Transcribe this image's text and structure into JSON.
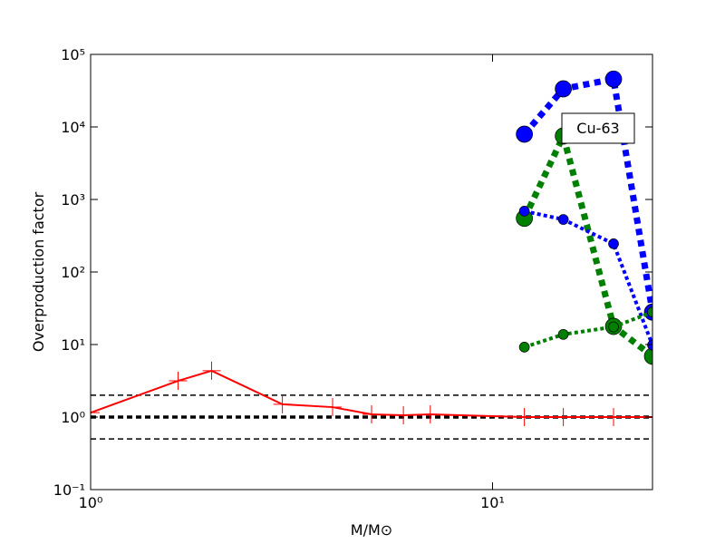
{
  "chart_data": {
    "type": "line",
    "xlabel": "M/M⊙",
    "ylabel": "Overproduction factor",
    "annotation": "Cu-63",
    "xscale": "log",
    "yscale": "log",
    "xlim": [
      1,
      25
    ],
    "ylim": [
      0.1,
      100000
    ],
    "xticks": [
      {
        "value": 1,
        "label": "10⁰"
      },
      {
        "value": 10,
        "label": "10¹"
      }
    ],
    "yticks": [
      {
        "value": 0.1,
        "label": "10⁻¹"
      },
      {
        "value": 1,
        "label": "10⁰"
      },
      {
        "value": 10,
        "label": "10¹"
      },
      {
        "value": 100,
        "label": "10²"
      },
      {
        "value": 1000,
        "label": "10³"
      },
      {
        "value": 10000,
        "label": "10⁴"
      },
      {
        "value": 100000,
        "label": "10⁵"
      }
    ],
    "hlines": [
      {
        "value": 2,
        "color": "#000000",
        "linewidth": 1.5,
        "dash": "6,4"
      },
      {
        "value": 1,
        "color": "#000000",
        "linewidth": 3.5,
        "dash": "6,4"
      },
      {
        "value": 0.5,
        "color": "#000000",
        "linewidth": 1.5,
        "dash": "6,4"
      }
    ],
    "series": [
      {
        "color": "#ff0000",
        "linestyle": "solid",
        "linewidth": 2,
        "marker": "plus",
        "marker_size": 10,
        "x": [
          1,
          1.65,
          2,
          3,
          4,
          5,
          6,
          7,
          12,
          15,
          20,
          25
        ],
        "values": [
          1.15,
          3.16,
          4.35,
          1.5,
          1.37,
          1.09,
          1.06,
          1.09,
          1.0,
          1.0,
          1.0,
          1.0
        ]
      },
      {
        "color": "#0000ff",
        "linestyle": "dotted",
        "linewidth": 7,
        "marker": "circle",
        "marker_size": 9,
        "x": [
          12,
          15,
          20,
          25
        ],
        "values": [
          7940,
          33500,
          45700,
          28
        ]
      },
      {
        "color": "#008000",
        "linestyle": "dotted",
        "linewidth": 7,
        "marker": "circle",
        "marker_size": 9,
        "x": [
          12,
          15,
          20,
          25
        ],
        "values": [
          550,
          7500,
          17.8,
          6.9
        ]
      },
      {
        "color": "#0000ff",
        "linestyle": "dotted",
        "linewidth": 4,
        "marker": "circle",
        "marker_size": 5.5,
        "x": [
          12,
          15,
          20,
          25
        ],
        "values": [
          690,
          530,
          245,
          9.8
        ]
      },
      {
        "color": "#008000",
        "linestyle": "dotted",
        "linewidth": 4,
        "marker": "circle",
        "marker_size": 5.5,
        "x": [
          12,
          15,
          20,
          25
        ],
        "values": [
          9.2,
          13.8,
          17.5,
          28
        ]
      }
    ]
  }
}
